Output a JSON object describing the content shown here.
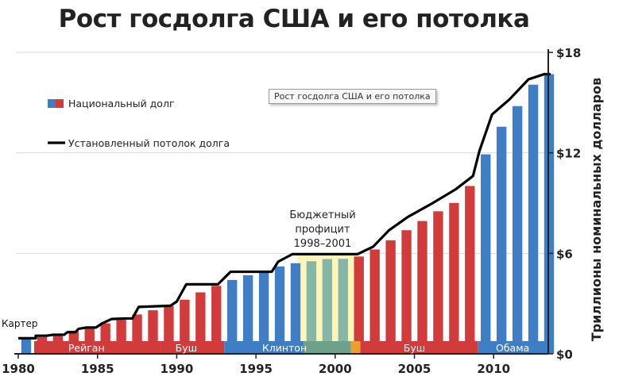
{
  "title": "Рост госдолга США и его потолка",
  "tooltip": "Рост госдолга США и его потолка",
  "colors": {
    "debt_blue": "#3f7dc4",
    "debt_red": "#d23b3b",
    "ceiling": "#000000",
    "axis": "#222222",
    "grid": "#d9d9d9",
    "surplus_band": "#fbf4b2",
    "surplus_stripe": "#e8a030"
  },
  "chart_data": {
    "type": "bar",
    "title": "Рост госдолга США и его потолка",
    "ylabel": "Триллионы номинальных долларов",
    "ylim": [
      0,
      18
    ],
    "yticks": [
      {
        "value": 0,
        "label": "$0"
      },
      {
        "value": 6,
        "label": "$6"
      },
      {
        "value": 12,
        "label": "$12"
      },
      {
        "value": 18,
        "label": "$18"
      }
    ],
    "xticks": [
      1980,
      1985,
      1990,
      1995,
      2000,
      2005,
      2010
    ],
    "xlim": [
      1980,
      2013.6
    ],
    "legend": [
      {
        "label": "Национальный долг",
        "kind": "bar"
      },
      {
        "label": "Установленный потолок долга",
        "kind": "line"
      }
    ],
    "legend_position": "top-left",
    "bars": [
      {
        "year": 1980,
        "value": 0.91,
        "party": "D"
      },
      {
        "year": 1981,
        "value": 1.0,
        "party": "R"
      },
      {
        "year": 1982,
        "value": 1.14,
        "party": "R"
      },
      {
        "year": 1983,
        "value": 1.38,
        "party": "R"
      },
      {
        "year": 1984,
        "value": 1.57,
        "party": "R"
      },
      {
        "year": 1985,
        "value": 1.82,
        "party": "R"
      },
      {
        "year": 1986,
        "value": 2.13,
        "party": "R"
      },
      {
        "year": 1987,
        "value": 2.35,
        "party": "R"
      },
      {
        "year": 1988,
        "value": 2.6,
        "party": "R"
      },
      {
        "year": 1989,
        "value": 2.86,
        "party": "R"
      },
      {
        "year": 1990,
        "value": 3.23,
        "party": "R"
      },
      {
        "year": 1991,
        "value": 3.67,
        "party": "R"
      },
      {
        "year": 1992,
        "value": 4.06,
        "party": "R"
      },
      {
        "year": 1993,
        "value": 4.41,
        "party": "D"
      },
      {
        "year": 1994,
        "value": 4.69,
        "party": "D"
      },
      {
        "year": 1995,
        "value": 4.97,
        "party": "D"
      },
      {
        "year": 1996,
        "value": 5.22,
        "party": "D"
      },
      {
        "year": 1997,
        "value": 5.41,
        "party": "D"
      },
      {
        "year": 1998,
        "value": 5.53,
        "party": "D"
      },
      {
        "year": 1999,
        "value": 5.66,
        "party": "D"
      },
      {
        "year": 2000,
        "value": 5.67,
        "party": "D"
      },
      {
        "year": 2001,
        "value": 5.81,
        "party": "R"
      },
      {
        "year": 2002,
        "value": 6.23,
        "party": "R"
      },
      {
        "year": 2003,
        "value": 6.78,
        "party": "R"
      },
      {
        "year": 2004,
        "value": 7.38,
        "party": "R"
      },
      {
        "year": 2005,
        "value": 7.93,
        "party": "R"
      },
      {
        "year": 2006,
        "value": 8.51,
        "party": "R"
      },
      {
        "year": 2007,
        "value": 9.01,
        "party": "R"
      },
      {
        "year": 2008,
        "value": 10.02,
        "party": "R"
      },
      {
        "year": 2009,
        "value": 11.91,
        "party": "D"
      },
      {
        "year": 2010,
        "value": 13.56,
        "party": "D"
      },
      {
        "year": 2011,
        "value": 14.79,
        "party": "D"
      },
      {
        "year": 2012,
        "value": 16.07,
        "party": "D"
      },
      {
        "year": 2013,
        "value": 16.7,
        "party": "D"
      }
    ],
    "ceiling": [
      [
        1980,
        0.93
      ],
      [
        1981.1,
        0.93
      ],
      [
        1981.1,
        1.08
      ],
      [
        1981.8,
        1.08
      ],
      [
        1982.2,
        1.14
      ],
      [
        1982.9,
        1.14
      ],
      [
        1983.1,
        1.29
      ],
      [
        1983.6,
        1.29
      ],
      [
        1983.8,
        1.49
      ],
      [
        1984.3,
        1.57
      ],
      [
        1984.9,
        1.57
      ],
      [
        1985.3,
        1.82
      ],
      [
        1985.9,
        2.08
      ],
      [
        1986.7,
        2.11
      ],
      [
        1987.2,
        2.11
      ],
      [
        1987.6,
        2.8
      ],
      [
        1989.6,
        2.87
      ],
      [
        1990.0,
        3.12
      ],
      [
        1990.6,
        4.15
      ],
      [
        1992.6,
        4.15
      ],
      [
        1993.4,
        4.9
      ],
      [
        1996.0,
        4.9
      ],
      [
        1996.4,
        5.5
      ],
      [
        1997.3,
        5.95
      ],
      [
        2001.4,
        5.95
      ],
      [
        2002.4,
        6.4
      ],
      [
        2003.4,
        7.38
      ],
      [
        2004.6,
        8.18
      ],
      [
        2006.1,
        8.97
      ],
      [
        2007.6,
        9.82
      ],
      [
        2008.7,
        10.62
      ],
      [
        2009.1,
        12.1
      ],
      [
        2009.9,
        14.29
      ],
      [
        2011.0,
        15.19
      ],
      [
        2012.2,
        16.39
      ],
      [
        2013.2,
        16.7
      ],
      [
        2013.6,
        16.7
      ]
    ],
    "period_labels": [
      {
        "label": "Картер",
        "year": 1979.8
      },
      {
        "label": "Рейган",
        "year": 1984.3
      },
      {
        "label": "Буш",
        "year": 1990.6
      },
      {
        "label": "Клинтон",
        "year": 1996.8
      },
      {
        "label": "Буш",
        "year": 2005.0
      },
      {
        "label": "Обама",
        "year": 2011.2
      }
    ],
    "surplus_range": [
      1997.6,
      2001.6
    ],
    "annotation": [
      "Бюджетный",
      "профицит",
      "1998–2001"
    ]
  }
}
